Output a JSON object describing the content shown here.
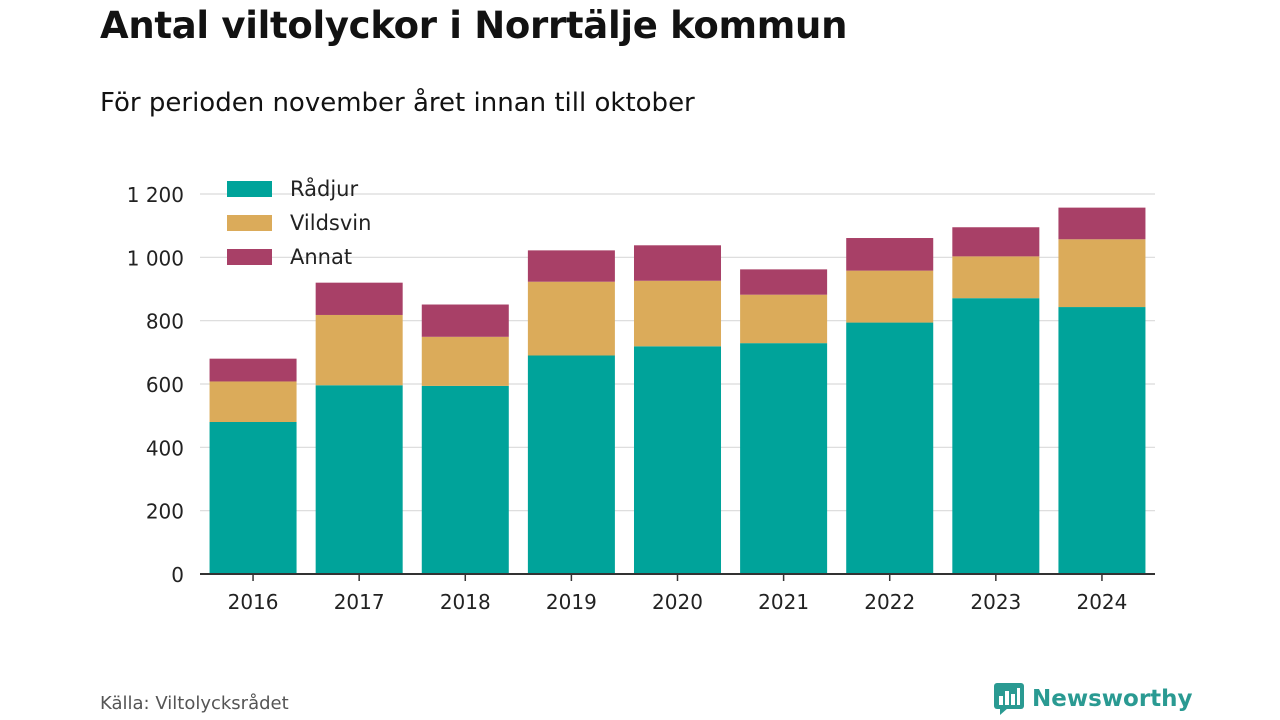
{
  "header": {
    "title": "Antal viltolyckor i Norrtälje kommun",
    "subtitle": "För perioden november året innan till oktober"
  },
  "footer": {
    "source": "Källa: Viltolycksrådet",
    "brand": "Newsworthy",
    "brand_icon": "bar-chart-speech-bubble-icon",
    "brand_color": "#2a9a92"
  },
  "chart_data": {
    "type": "bar",
    "stacked": true,
    "categories": [
      "2016",
      "2017",
      "2018",
      "2019",
      "2020",
      "2021",
      "2022",
      "2023",
      "2024"
    ],
    "series": [
      {
        "name": "Rådjur",
        "color": "#00a39a",
        "values": [
          480,
          596,
          594,
          690,
          719,
          729,
          794,
          871,
          843
        ]
      },
      {
        "name": "Vildsvin",
        "color": "#dbab5a",
        "values": [
          128,
          222,
          155,
          233,
          207,
          153,
          164,
          132,
          214
        ]
      },
      {
        "name": "Annat",
        "color": "#a84067",
        "values": [
          72,
          102,
          102,
          99,
          112,
          80,
          103,
          92,
          100
        ]
      }
    ],
    "ylim": [
      0,
      1200
    ],
    "yticks": [
      0,
      200,
      400,
      600,
      800,
      1000,
      1200
    ],
    "ytick_labels": [
      "0",
      "200",
      "400",
      "600",
      "800",
      "1 000",
      "1 200"
    ],
    "grid": true,
    "legend": "top-left",
    "xlabel": "",
    "ylabel": ""
  }
}
